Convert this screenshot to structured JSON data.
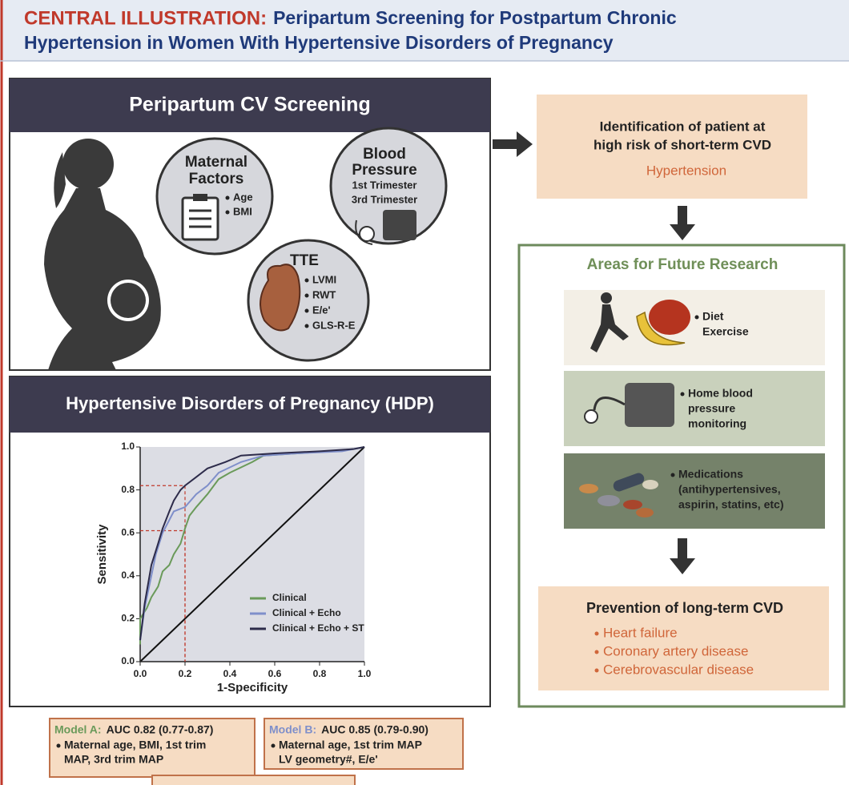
{
  "header": {
    "label": "CENTRAL ILLUSTRATION:",
    "title_line1": "Peripartum Screening for Postpartum Chronic",
    "title_line2": "Hypertension in Women With Hypertensive Disorders of Pregnancy"
  },
  "screening": {
    "title": "Peripartum CV Screening",
    "maternal": {
      "title": [
        "Maternal",
        "Factors"
      ],
      "items": [
        "Age",
        "BMI"
      ]
    },
    "bp": {
      "title": [
        "Blood",
        "Pressure"
      ],
      "items": [
        "1st Trimester",
        "3rd Trimester"
      ]
    },
    "tte": {
      "title": "TTE",
      "items": [
        "LVMI",
        "RWT",
        "E/e'",
        "GLS-R-E"
      ]
    }
  },
  "identification": {
    "lines": [
      "Identification of patient at",
      "high risk of short-term CVD"
    ],
    "outcome": "Hypertension"
  },
  "research": {
    "title": "Areas for Future Research",
    "items": [
      [
        "Diet",
        "Exercise"
      ],
      [
        "Home blood",
        "pressure",
        "monitoring"
      ],
      [
        "Medications",
        "(antihypertensives,",
        "aspirin, statins, etc)"
      ]
    ]
  },
  "prevention": {
    "title": "Prevention of long-term CVD",
    "items": [
      "Heart failure",
      "Coronary artery disease",
      "Cerebrovascular disease"
    ]
  },
  "hdp": {
    "title": "Hypertensive Disorders of Pregnancy (HDP)"
  },
  "chart_data": {
    "type": "line",
    "x_label": "1-Specificity",
    "y_label": "Sensitivity",
    "xlim": [
      0,
      1
    ],
    "ylim": [
      0,
      1
    ],
    "xticks": [
      {
        "value": 0,
        "label": "0.0"
      },
      0.2,
      0.4,
      0.6,
      0.8,
      {
        "value": 1,
        "label": "1.0"
      }
    ],
    "yticks": [
      {
        "value": 0,
        "label": "0.0"
      },
      0.2,
      0.4,
      0.6,
      0.8,
      {
        "value": 1,
        "label": "1.0"
      }
    ],
    "series": [
      {
        "name": "Clinical",
        "color": "#6a9a5a",
        "x": [
          0,
          0,
          0.03,
          0.05,
          0.08,
          0.1,
          0.13,
          0.15,
          0.18,
          0.2,
          0.22,
          0.25,
          0.3,
          0.35,
          0.4,
          0.5,
          0.55,
          0.7,
          0.85,
          0.95,
          1
        ],
        "values": [
          0.08,
          0.2,
          0.25,
          0.3,
          0.35,
          0.42,
          0.45,
          0.5,
          0.55,
          0.62,
          0.68,
          0.72,
          0.78,
          0.85,
          0.88,
          0.93,
          0.96,
          0.97,
          0.98,
          0.99,
          1
        ]
      },
      {
        "name": "Clinical + Echo",
        "color": "#7f8fca",
        "x": [
          0,
          0.02,
          0.05,
          0.07,
          0.1,
          0.13,
          0.15,
          0.2,
          0.25,
          0.3,
          0.35,
          0.45,
          0.55,
          0.7,
          0.9,
          1
        ],
        "values": [
          0.1,
          0.25,
          0.4,
          0.5,
          0.6,
          0.66,
          0.7,
          0.72,
          0.78,
          0.82,
          0.88,
          0.93,
          0.96,
          0.97,
          0.98,
          1
        ]
      },
      {
        "name": "Clinical + Echo + ST",
        "color": "#2d2b4a",
        "x": [
          0,
          0.02,
          0.05,
          0.08,
          0.1,
          0.13,
          0.15,
          0.18,
          0.2,
          0.25,
          0.3,
          0.38,
          0.45,
          0.6,
          0.8,
          0.95,
          1
        ],
        "values": [
          0.1,
          0.27,
          0.45,
          0.55,
          0.62,
          0.7,
          0.75,
          0.8,
          0.82,
          0.86,
          0.9,
          0.93,
          0.96,
          0.97,
          0.98,
          0.99,
          1
        ]
      }
    ],
    "guides": [
      {
        "x": 0.2,
        "y": 0.82
      },
      {
        "x": 0.2,
        "y": 0.61
      }
    ]
  },
  "models": [
    {
      "name": "Model A:",
      "color": "#6a9a5a",
      "auc": "AUC 0.82 (0.77-0.87)",
      "lines": [
        "Maternal age, BMI, 1st trim",
        "MAP, 3rd trim MAP"
      ]
    },
    {
      "name": "Model B:",
      "color": "#7f8fca",
      "auc": "AUC 0.85 (0.79-0.90)",
      "lines": [
        "Maternal age, 1st trim MAP",
        "LV geometry#, E/e'"
      ]
    }
  ]
}
